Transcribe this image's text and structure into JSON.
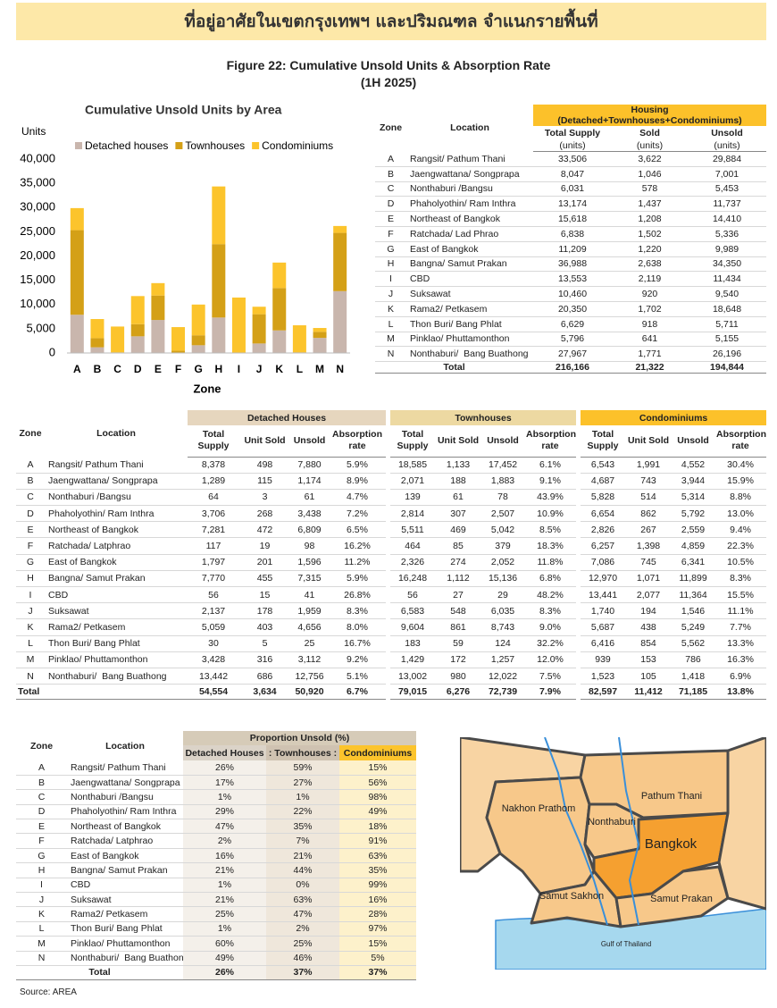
{
  "header": {
    "title": "ที่อยู่อาศัยในเขตกรุงเทพฯ และปริมณฑล จำแนกรายพื้นที่"
  },
  "figure": {
    "title": "Figure 22: Cumulative Unsold Units & Absorption Rate",
    "subtitle": "(1H 2025)"
  },
  "chart_data": {
    "type": "stacked_bar",
    "title": "Cumulative Unsold Units by Area",
    "y_label": "Units",
    "x_label": "Zone",
    "categories": [
      "A",
      "B",
      "C",
      "D",
      "E",
      "F",
      "G",
      "H",
      "I",
      "J",
      "K",
      "L",
      "M",
      "N"
    ],
    "series": [
      {
        "name": "Detached houses",
        "color": "#c9b6ad",
        "values": [
          7880,
          1174,
          61,
          3438,
          6809,
          98,
          1596,
          7315,
          41,
          1959,
          4656,
          25,
          3112,
          12756
        ]
      },
      {
        "name": "Townhouses",
        "color": "#d4a017",
        "values": [
          17452,
          1883,
          78,
          2507,
          5042,
          379,
          2052,
          15136,
          29,
          6035,
          8743,
          124,
          1257,
          12022
        ]
      },
      {
        "name": "Condominiums",
        "color": "#fcc42c",
        "values": [
          4552,
          3944,
          5314,
          5792,
          2559,
          4859,
          6341,
          11899,
          11364,
          1546,
          5249,
          5562,
          786,
          1418
        ]
      }
    ],
    "ylim": [
      0,
      40000
    ],
    "yticks": [
      0,
      {
        "value": 5000,
        "label": "5,000"
      },
      {
        "value": 10000,
        "label": "10,000"
      },
      {
        "value": 15000,
        "label": "15,000"
      },
      {
        "value": 20000,
        "label": "20,000"
      },
      {
        "value": 25000,
        "label": "25,000"
      },
      {
        "value": 30000,
        "label": "30,000"
      },
      {
        "value": 35000,
        "label": "35,000"
      },
      {
        "value": 40000,
        "label": "40,000"
      }
    ],
    "grid": false,
    "legend": "top"
  },
  "housing_table": {
    "zone_header": "Zone",
    "location_header": "Location",
    "group_header": "Housing",
    "group_subheader": "(Detached+Townhouses+Condominiums)",
    "columns": [
      "Total Supply",
      "Sold",
      "Unsold"
    ],
    "units": [
      "(units)",
      "(units)",
      "(units)"
    ],
    "rows": [
      [
        "A",
        "Rangsit/ Pathum Thani",
        "33,506",
        "3,622",
        "29,884"
      ],
      [
        "B",
        "Jaengwattana/ Songprapa",
        "8,047",
        "1,046",
        "7,001"
      ],
      [
        "C",
        "Nonthaburi /Bangsu",
        "6,031",
        "578",
        "5,453"
      ],
      [
        "D",
        "Phaholyothin/ Ram Inthra",
        "13,174",
        "1,437",
        "11,737"
      ],
      [
        "E",
        "Northeast of Bangkok",
        "15,618",
        "1,208",
        "14,410"
      ],
      [
        "F",
        "Ratchada/ Lad Phrao",
        "6,838",
        "1,502",
        "5,336"
      ],
      [
        "G",
        "East of Bangkok",
        "11,209",
        "1,220",
        "9,989"
      ],
      [
        "H",
        "Bangna/ Samut Prakan",
        "36,988",
        "2,638",
        "34,350"
      ],
      [
        "I",
        "CBD",
        "13,553",
        "2,119",
        "11,434"
      ],
      [
        "J",
        "Suksawat",
        "10,460",
        "920",
        "9,540"
      ],
      [
        "K",
        "Rama2/ Petkasem",
        "20,350",
        "1,702",
        "18,648"
      ],
      [
        "L",
        "Thon Buri/ Bang Phlat",
        "6,629",
        "918",
        "5,711"
      ],
      [
        "M",
        "Pinklao/ Phuttamonthon",
        "5,796",
        "641",
        "5,155"
      ],
      [
        "N",
        "Nonthaburi/  Bang Buathong",
        "27,967",
        "1,771",
        "26,196"
      ]
    ],
    "total": [
      "Total",
      "216,166",
      "21,322",
      "194,844"
    ]
  },
  "detail_table": {
    "zone_header": "Zone",
    "location_header": "Location",
    "groups": [
      "Detached Houses",
      "Townhouses",
      "Condominiums"
    ],
    "columns": [
      [
        "Total Supply",
        "Unit Sold",
        "Unsold",
        "Absorption rate"
      ],
      [
        "Total Supply",
        "Unit Sold",
        "Unsold",
        "Absorption rate"
      ],
      [
        "Total Supply",
        "Unit Sold",
        "Unsold",
        "Absorption rate"
      ]
    ],
    "rows": [
      [
        "A",
        "Rangsit/ Pathum Thani",
        "8,378",
        "498",
        "7,880",
        "5.9%",
        "18,585",
        "1,133",
        "17,452",
        "6.1%",
        "6,543",
        "1,991",
        "4,552",
        "30.4%"
      ],
      [
        "B",
        "Jaengwattana/ Songprapa",
        "1,289",
        "115",
        "1,174",
        "8.9%",
        "2,071",
        "188",
        "1,883",
        "9.1%",
        "4,687",
        "743",
        "3,944",
        "15.9%"
      ],
      [
        "C",
        "Nonthaburi /Bangsu",
        "64",
        "3",
        "61",
        "4.7%",
        "139",
        "61",
        "78",
        "43.9%",
        "5,828",
        "514",
        "5,314",
        "8.8%"
      ],
      [
        "D",
        "Phaholyothin/ Ram Inthra",
        "3,706",
        "268",
        "3,438",
        "7.2%",
        "2,814",
        "307",
        "2,507",
        "10.9%",
        "6,654",
        "862",
        "5,792",
        "13.0%"
      ],
      [
        "E",
        "Northeast of Bangkok",
        "7,281",
        "472",
        "6,809",
        "6.5%",
        "5,511",
        "469",
        "5,042",
        "8.5%",
        "2,826",
        "267",
        "2,559",
        "9.4%"
      ],
      [
        "F",
        "Ratchada/ Latphrao",
        "117",
        "19",
        "98",
        "16.2%",
        "464",
        "85",
        "379",
        "18.3%",
        "6,257",
        "1,398",
        "4,859",
        "22.3%"
      ],
      [
        "G",
        "East of Bangkok",
        "1,797",
        "201",
        "1,596",
        "11.2%",
        "2,326",
        "274",
        "2,052",
        "11.8%",
        "7,086",
        "745",
        "6,341",
        "10.5%"
      ],
      [
        "H",
        "Bangna/ Samut Prakan",
        "7,770",
        "455",
        "7,315",
        "5.9%",
        "16,248",
        "1,112",
        "15,136",
        "6.8%",
        "12,970",
        "1,071",
        "11,899",
        "8.3%"
      ],
      [
        "I",
        "CBD",
        "56",
        "15",
        "41",
        "26.8%",
        "56",
        "27",
        "29",
        "48.2%",
        "13,441",
        "2,077",
        "11,364",
        "15.5%"
      ],
      [
        "J",
        "Suksawat",
        "2,137",
        "178",
        "1,959",
        "8.3%",
        "6,583",
        "548",
        "6,035",
        "8.3%",
        "1,740",
        "194",
        "1,546",
        "11.1%"
      ],
      [
        "K",
        "Rama2/ Petkasem",
        "5,059",
        "403",
        "4,656",
        "8.0%",
        "9,604",
        "861",
        "8,743",
        "9.0%",
        "5,687",
        "438",
        "5,249",
        "7.7%"
      ],
      [
        "L",
        "Thon Buri/ Bang Phlat",
        "30",
        "5",
        "25",
        "16.7%",
        "183",
        "59",
        "124",
        "32.2%",
        "6,416",
        "854",
        "5,562",
        "13.3%"
      ],
      [
        "M",
        "Pinklao/ Phuttamonthon",
        "3,428",
        "316",
        "3,112",
        "9.2%",
        "1,429",
        "172",
        "1,257",
        "12.0%",
        "939",
        "153",
        "786",
        "16.3%"
      ],
      [
        "N",
        "Nonthaburi/  Bang Buathong",
        "13,442",
        "686",
        "12,756",
        "5.1%",
        "13,002",
        "980",
        "12,022",
        "7.5%",
        "1,523",
        "105",
        "1,418",
        "6.9%"
      ]
    ],
    "total": [
      "Total",
      "54,554",
      "3,634",
      "50,920",
      "6.7%",
      "79,015",
      "6,276",
      "72,739",
      "7.9%",
      "82,597",
      "11,412",
      "71,185",
      "13.8%"
    ]
  },
  "proportion_table": {
    "zone_header": "Zone",
    "location_header": "Location",
    "group_header": "Proportion Unsold (%)",
    "columns": [
      "Detached Houses",
      ": Townhouses :",
      "Condominiums"
    ],
    "rows": [
      [
        "A",
        "Rangsit/ Pathum Thani",
        "26%",
        "59%",
        "15%"
      ],
      [
        "B",
        "Jaengwattana/ Songprapa",
        "17%",
        "27%",
        "56%"
      ],
      [
        "C",
        "Nonthaburi /Bangsu",
        "1%",
        "1%",
        "98%"
      ],
      [
        "D",
        "Phaholyothin/ Ram Inthra",
        "29%",
        "22%",
        "49%"
      ],
      [
        "E",
        "Northeast of Bangkok",
        "47%",
        "35%",
        "18%"
      ],
      [
        "F",
        "Ratchada/ Latphrao",
        "2%",
        "7%",
        "91%"
      ],
      [
        "G",
        "East of Bangkok",
        "16%",
        "21%",
        "63%"
      ],
      [
        "H",
        "Bangna/ Samut Prakan",
        "21%",
        "44%",
        "35%"
      ],
      [
        "I",
        "CBD",
        "1%",
        "0%",
        "99%"
      ],
      [
        "J",
        "Suksawat",
        "21%",
        "63%",
        "16%"
      ],
      [
        "K",
        "Rama2/ Petkasem",
        "25%",
        "47%",
        "28%"
      ],
      [
        "L",
        "Thon Buri/ Bang Phlat",
        "1%",
        "2%",
        "97%"
      ],
      [
        "M",
        "Pinklao/ Phuttamonthon",
        "60%",
        "25%",
        "15%"
      ],
      [
        "N",
        "Nonthaburi/  Bang Buathon",
        "49%",
        "46%",
        "5%"
      ]
    ],
    "total": [
      "Total",
      "26%",
      "37%",
      "37%"
    ]
  },
  "map": {
    "labels": [
      "Nakhon Prathom",
      "Pathum Thani",
      "Nonthaburi",
      "Bangkok",
      "Samut Sakhon",
      "Samut Prakan",
      "Gulf of Thailand"
    ]
  },
  "source": "Source: AREA"
}
